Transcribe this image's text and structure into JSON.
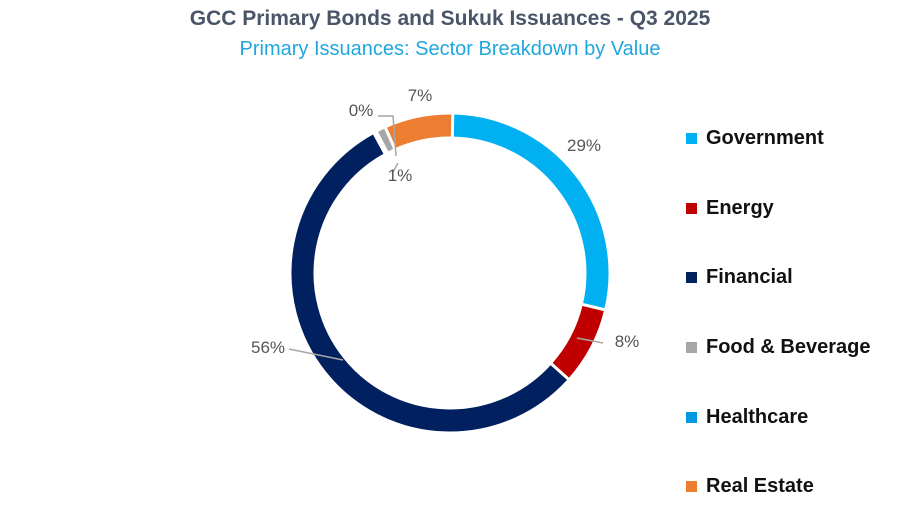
{
  "chart_data": {
    "type": "pie",
    "variant": "donut",
    "title": "GCC Primary Bonds and Sukuk Issuances - Q3 2025",
    "subtitle": "Primary Issuances: Sector Breakdown by Value",
    "categories": [
      "Government",
      "Energy",
      "Financial",
      "Food & Beverage",
      "Healthcare",
      "Real Estate"
    ],
    "values": [
      29,
      8,
      56,
      1,
      0,
      7
    ],
    "value_labels": [
      "29%",
      "8%",
      "56%",
      "1%",
      "0%",
      "7%"
    ],
    "colors": [
      "#00b0f0",
      "#c00000",
      "#002060",
      "#a6a6a6",
      "#0099e0",
      "#ed7d31"
    ],
    "legend_position": "right"
  }
}
